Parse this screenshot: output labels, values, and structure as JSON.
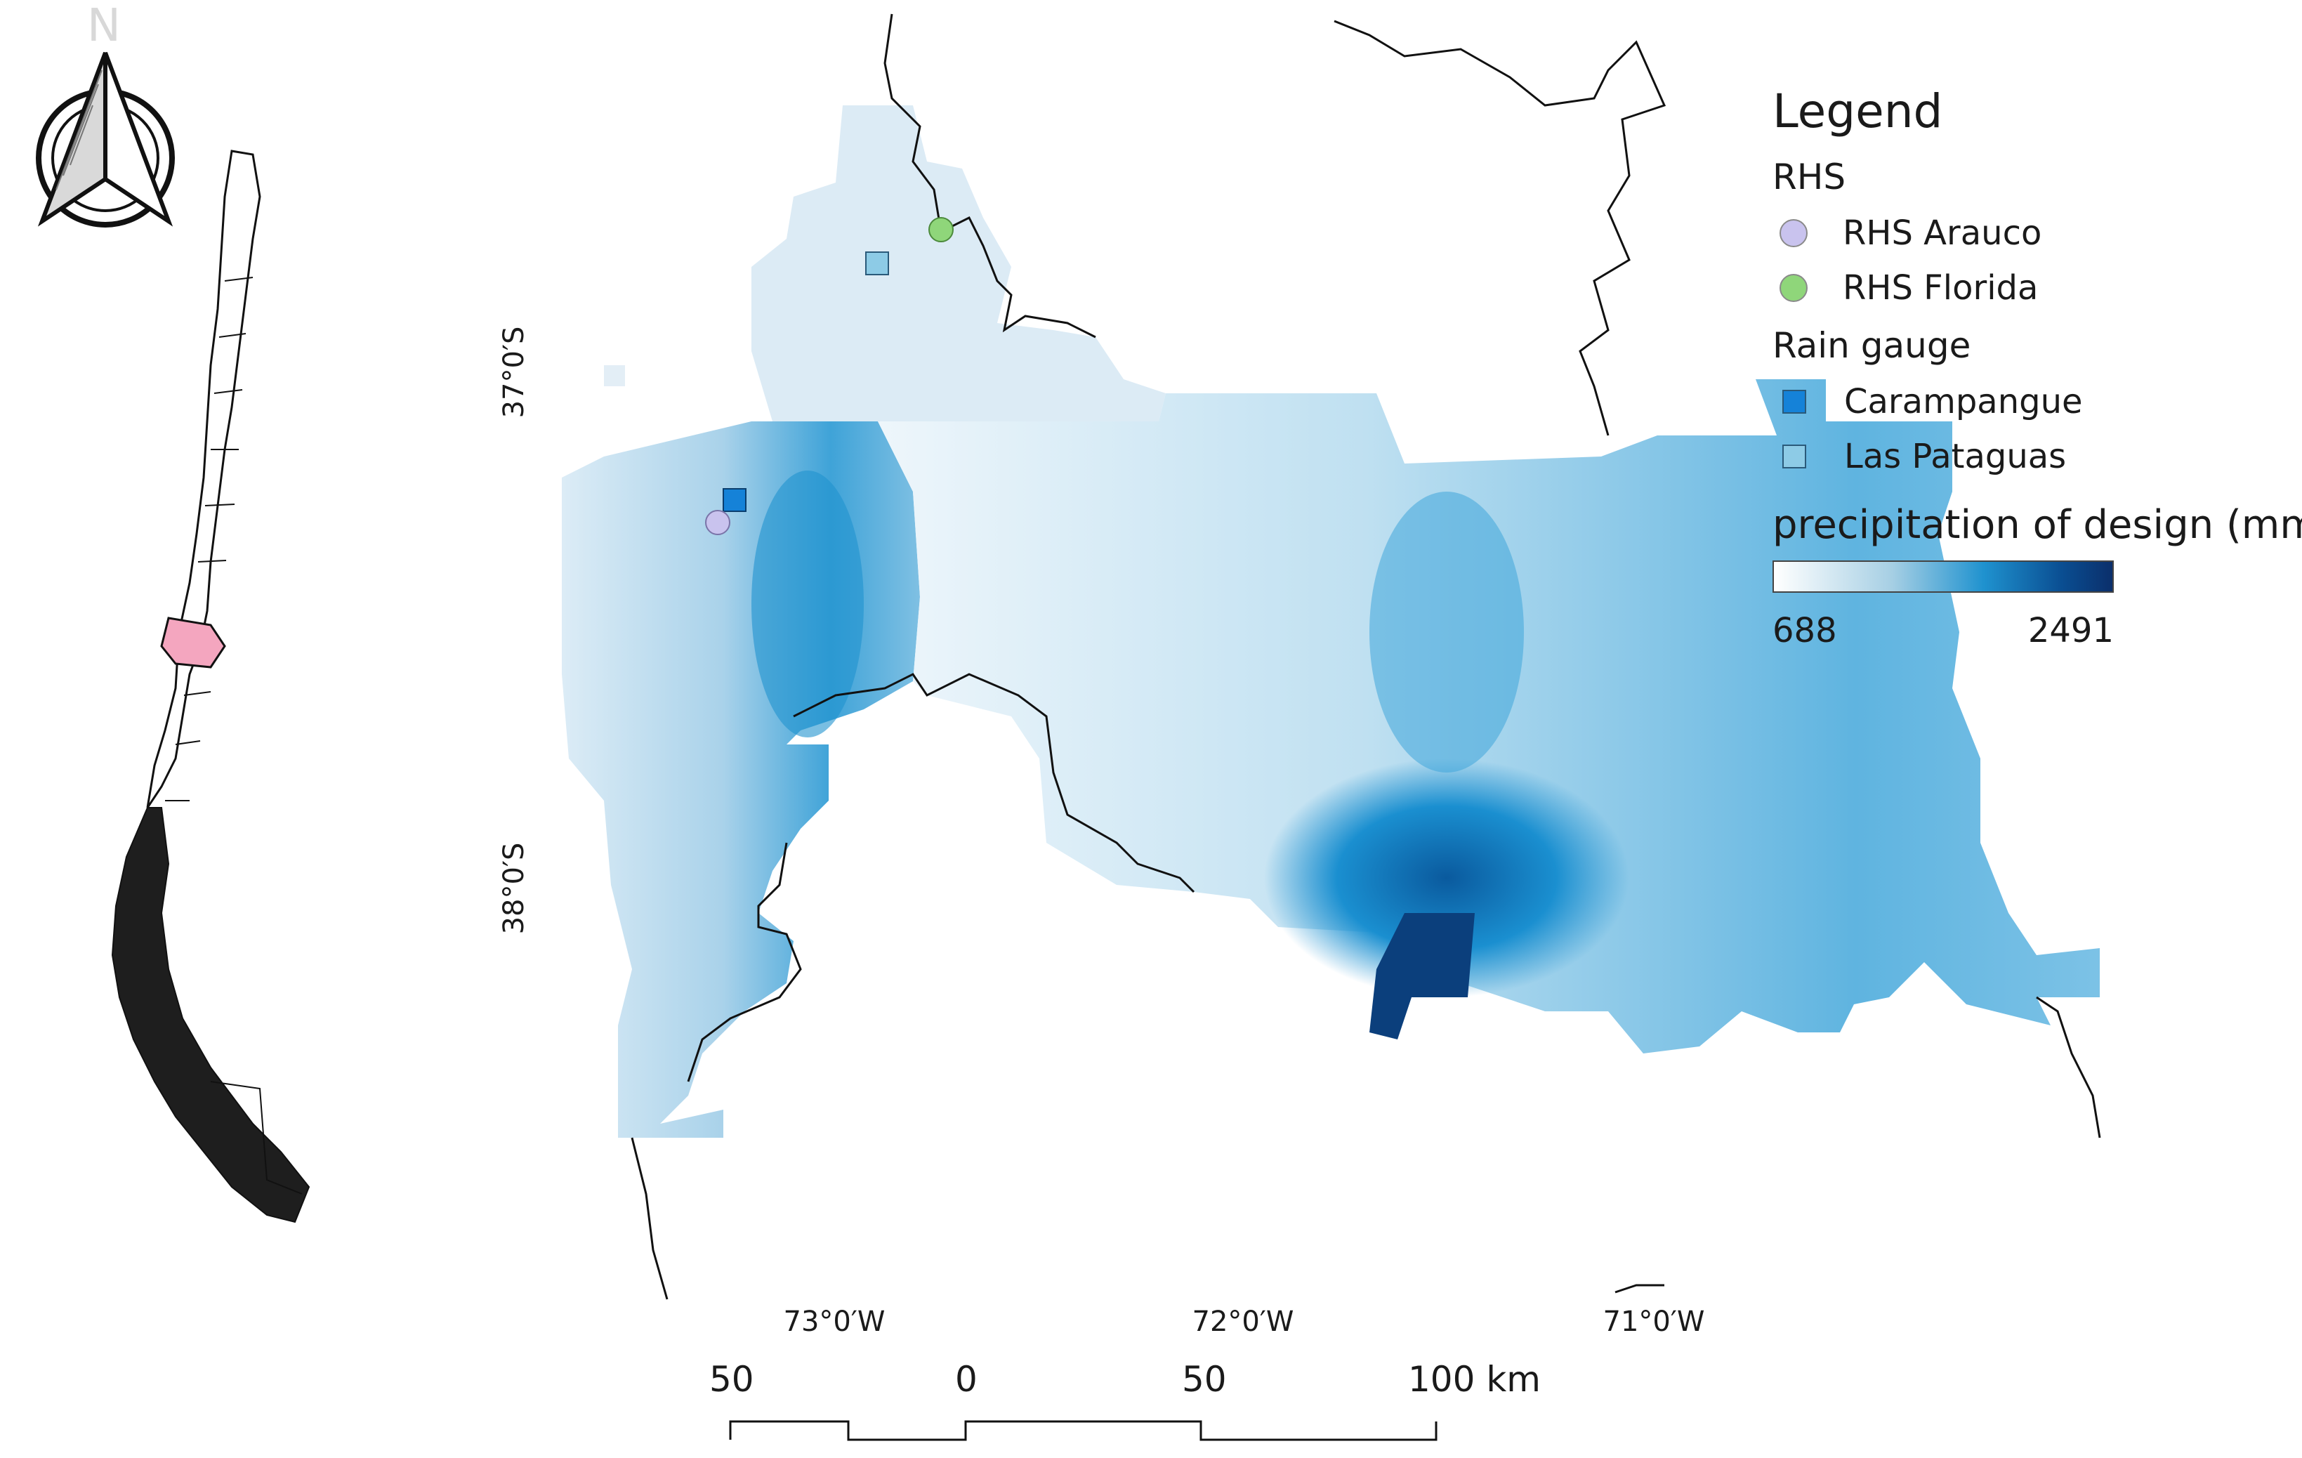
{
  "legend": {
    "title": "Legend",
    "groups": [
      {
        "title": "RHS",
        "items": [
          {
            "label": "RHS Arauco",
            "color": "#c9c3ee",
            "shape": "circle"
          },
          {
            "label": "RHS Florida",
            "color": "#8fd67a",
            "shape": "circle"
          }
        ]
      },
      {
        "title": "Rain gauge",
        "items": [
          {
            "label": "Carampangue",
            "color": "#1582d8",
            "shape": "square"
          },
          {
            "label": "Las Pataguas",
            "color": "#8dcbe6",
            "shape": "square"
          }
        ]
      }
    ],
    "ramp": {
      "title": "precipitation of design (mm)",
      "min": "688",
      "max": "2491",
      "colors": [
        "#ffffff",
        "#a6cfe4",
        "#1f92cf",
        "#0a4e92",
        "#0b2f6b"
      ]
    }
  },
  "map": {
    "lat_labels": [
      "37°0′S",
      "38°0′S"
    ],
    "lon_labels": [
      "73°0′W",
      "72°0′W",
      "71°0′W"
    ],
    "scale_bar": {
      "labels": [
        "50",
        "0",
        "50",
        "100 km"
      ]
    },
    "north_arrow": {
      "label": "N",
      "icon": "north-arrow-icon"
    },
    "inset": {
      "description_icon": "chile-outline-icon",
      "highlight_color": "#f4a6bf"
    }
  }
}
